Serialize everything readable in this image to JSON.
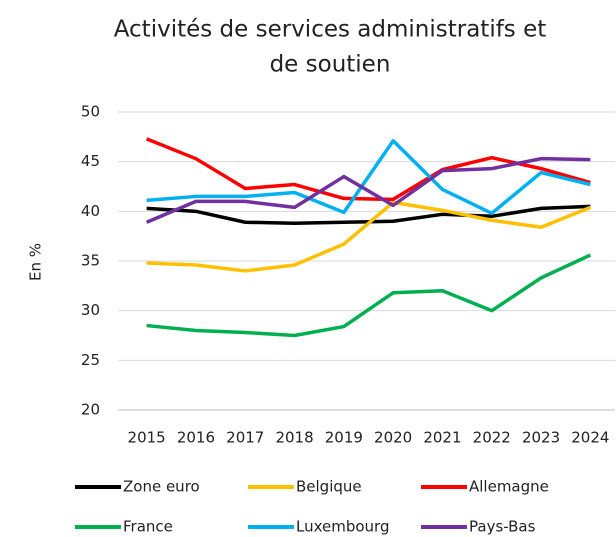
{
  "chart_data": {
    "type": "line",
    "title": [
      "Activités de services administratifs et",
      "de soutien"
    ],
    "y_label": "En %",
    "categories": [
      "2015",
      "2016",
      "2017",
      "2018",
      "2019",
      "2020",
      "2021",
      "2022",
      "2023",
      "2024"
    ],
    "series": [
      {
        "name": "Zone euro",
        "color": "#000000",
        "values": [
          40.3,
          40.0,
          38.9,
          38.8,
          38.9,
          39.0,
          39.7,
          39.5,
          40.3,
          40.5
        ]
      },
      {
        "name": "Belgique",
        "color": "#ffc000",
        "values": [
          34.8,
          34.6,
          34.0,
          34.6,
          36.7,
          40.9,
          40.1,
          39.1,
          38.4,
          40.4
        ]
      },
      {
        "name": "Allemagne",
        "color": "#ff0000",
        "values": [
          47.3,
          45.3,
          42.3,
          42.7,
          41.3,
          41.2,
          44.2,
          45.4,
          44.3,
          42.9
        ]
      },
      {
        "name": "France",
        "color": "#00b050",
        "values": [
          28.5,
          28.0,
          27.8,
          27.5,
          28.4,
          31.8,
          32.0,
          30.0,
          33.3,
          35.6
        ]
      },
      {
        "name": "Luxembourg",
        "color": "#00b0f0",
        "values": [
          41.1,
          41.5,
          41.5,
          41.9,
          39.9,
          47.1,
          42.2,
          39.8,
          43.9,
          42.7
        ]
      },
      {
        "name": "Pays-Bas",
        "color": "#7030a0",
        "values": [
          38.9,
          41.0,
          41.0,
          40.4,
          43.5,
          40.6,
          44.1,
          44.3,
          45.3,
          45.2
        ]
      }
    ],
    "ylim": [
      20,
      50
    ],
    "yticks": [
      20,
      25,
      30,
      35,
      40,
      45,
      50
    ],
    "grid": true,
    "legend": "bottom"
  }
}
